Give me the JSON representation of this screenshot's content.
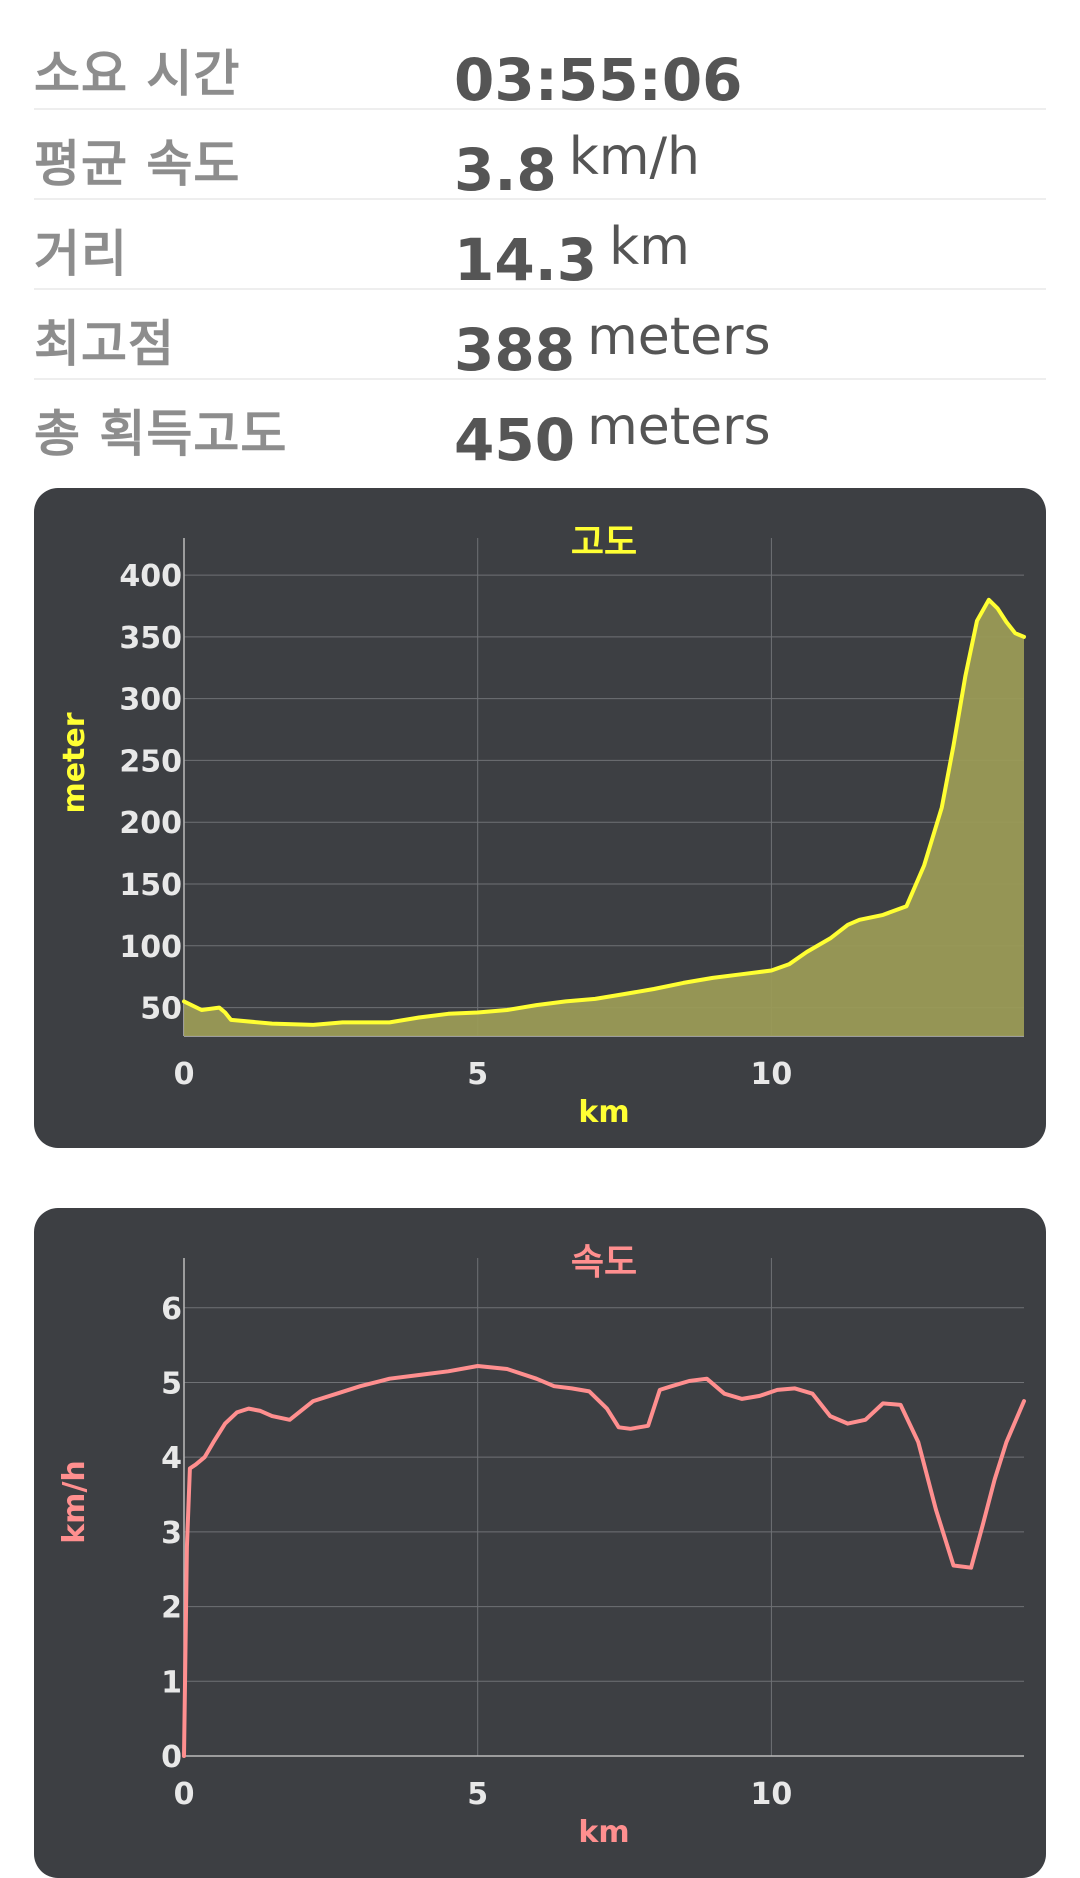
{
  "stats": [
    {
      "label": "소요 시간",
      "value": "03:55:06",
      "unit": ""
    },
    {
      "label": "평균 속도",
      "value": "3.8",
      "unit": "km/h"
    },
    {
      "label": "거리",
      "value": "14.3",
      "unit": "km"
    },
    {
      "label": "최고점",
      "value": "388",
      "unit": "meters"
    },
    {
      "label": "총 획득고도",
      "value": "450",
      "unit": "meters"
    }
  ],
  "colors": {
    "card_bg": "#3d3f43",
    "elevation_line": "#ffff33",
    "elevation_fill": "#9a9a56",
    "speed_line": "#ff8f8f",
    "grid": "#6f7175",
    "stat_label": "#8d8d8d",
    "stat_value": "#555555"
  },
  "chart_data": [
    {
      "type": "area",
      "title": "고도",
      "xlabel": "km",
      "ylabel": "meter",
      "xlim": [
        0,
        14.3
      ],
      "ylim": [
        27,
        430
      ],
      "x_ticks": [
        0,
        5,
        10
      ],
      "x_tick_labels": [
        "0",
        "5",
        "10"
      ],
      "y_ticks": [
        50,
        100,
        150,
        200,
        250,
        300,
        350,
        400
      ],
      "y_tick_labels": [
        "50",
        "100",
        "150",
        "200",
        "250",
        "300",
        "350",
        "400"
      ],
      "grid": true,
      "series": [
        {
          "x": [
            0,
            0.3,
            0.6,
            0.7,
            0.8,
            1.5,
            2.2,
            2.7,
            3.5,
            4,
            4.5,
            5,
            5.5,
            6,
            6.5,
            7,
            7.5,
            8,
            8.5,
            9,
            9.5,
            10,
            10.3,
            10.6,
            11,
            11.3,
            11.5,
            11.9,
            12.3,
            12.6,
            12.9,
            13.1,
            13.3,
            13.5,
            13.7,
            13.85,
            14,
            14.15,
            14.3
          ],
          "y": [
            55,
            48,
            50,
            46,
            40,
            37,
            36,
            38,
            38,
            42,
            45,
            46,
            48,
            52,
            55,
            57,
            61,
            65,
            70,
            74,
            77,
            80,
            85,
            95,
            106,
            117,
            121,
            125,
            132,
            165,
            212,
            262,
            318,
            363,
            380,
            373,
            362,
            353,
            350
          ]
        }
      ]
    },
    {
      "type": "line",
      "title": "속도",
      "xlabel": "km",
      "ylabel": "km/h",
      "xlim": [
        0,
        14.3
      ],
      "ylim": [
        0,
        6.8
      ],
      "x_ticks": [
        0,
        5,
        10
      ],
      "x_tick_labels": [
        "0",
        "5",
        "10"
      ],
      "y_ticks": [
        0,
        1,
        2,
        3,
        4,
        5,
        6
      ],
      "y_tick_labels": [
        "0",
        "1",
        "2",
        "3",
        "4",
        "5",
        "6"
      ],
      "grid": true,
      "series": [
        {
          "x": [
            0,
            0.05,
            0.1,
            0.2,
            0.35,
            0.5,
            0.7,
            0.9,
            1.1,
            1.3,
            1.5,
            1.8,
            2.2,
            2.6,
            3,
            3.5,
            4,
            4.5,
            5,
            5.5,
            6,
            6.3,
            6.6,
            6.9,
            7.2,
            7.4,
            7.6,
            7.9,
            8.1,
            8.3,
            8.6,
            8.9,
            9.2,
            9.5,
            9.8,
            10.1,
            10.4,
            10.7,
            11,
            11.3,
            11.6,
            11.9,
            12.2,
            12.5,
            12.8,
            13.1,
            13.4,
            13.6,
            13.8,
            14,
            14.3
          ],
          "y": [
            0,
            2.8,
            3.85,
            3.9,
            4.0,
            4.2,
            4.45,
            4.6,
            4.65,
            4.62,
            4.55,
            4.5,
            4.75,
            4.85,
            4.95,
            5.05,
            5.1,
            5.15,
            5.22,
            5.18,
            5.05,
            4.95,
            4.92,
            4.88,
            4.65,
            4.4,
            4.38,
            4.42,
            4.9,
            4.95,
            5.02,
            5.05,
            4.85,
            4.78,
            4.82,
            4.9,
            4.92,
            4.85,
            4.55,
            4.45,
            4.5,
            4.72,
            4.7,
            4.2,
            3.3,
            2.55,
            2.52,
            3.1,
            3.7,
            4.2,
            4.75
          ]
        }
      ]
    }
  ]
}
